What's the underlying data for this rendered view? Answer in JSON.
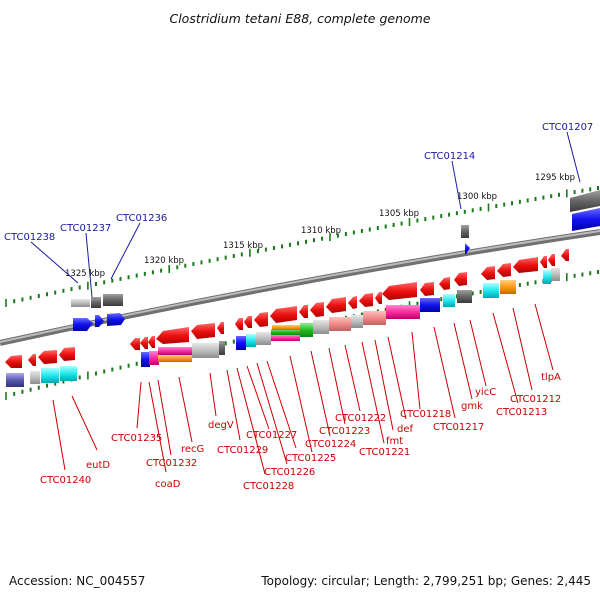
{
  "title": "Clostridium tetani E88, complete genome",
  "footer": {
    "accession": "Accession: NC_004557",
    "topology": "Topology: circular; Length: 2,799,251 bp; Genes: 2,445"
  },
  "scale_labels": [
    "1325 kbp",
    "1320 kbp",
    "1315 kbp",
    "1310 kbp",
    "1305 kbp",
    "1300 kbp",
    "1295 kbp"
  ],
  "genes_top": [
    "CTC01238",
    "CTC01237",
    "CTC01236",
    "CTC01214",
    "CTC01207"
  ],
  "genes_bottom": [
    "CTC01240",
    "eutD",
    "CTC01235",
    "coaD",
    "CTC01232",
    "recG",
    "degV",
    "CTC01229",
    "CTC01228",
    "CTC01227",
    "CTC01226",
    "CTC01225",
    "CTC01224",
    "CTC01223",
    "CTC01222",
    "CTC01221",
    "fmt",
    "def",
    "CTC01218",
    "CTC01217",
    "gmk",
    "yicC",
    "CTC01213",
    "CTC01212",
    "tlpA"
  ],
  "colors": {
    "backbone": "#8a8a8a",
    "ticks": "#1a7a1a",
    "forward_label": "#1a1aa0",
    "reverse_label": "#cc0000",
    "reverse_gene": "#ee1111",
    "forward_gene": "#1111ee"
  }
}
